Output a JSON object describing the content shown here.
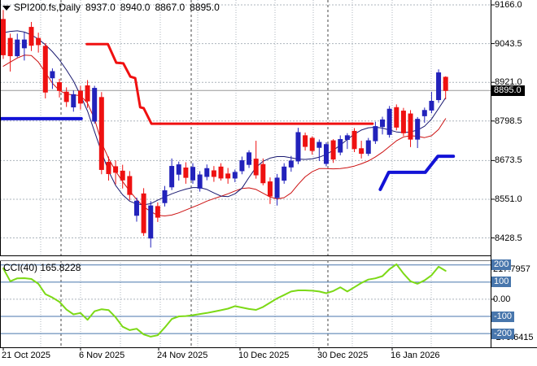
{
  "header": {
    "symbol_marker": "▼",
    "title": "SPI200.fs,Daily",
    "open": "8937.0",
    "high": "8940.0",
    "low": "8867.0",
    "close": "8895.0"
  },
  "price_axis": {
    "ticks": [
      "9166.0",
      "9043.5",
      "8921.0",
      "8798.5",
      "8673.5",
      "8551.0",
      "8428.5"
    ],
    "price_tag": "8895.0"
  },
  "time_axis": {
    "labels": [
      "21 Oct 2025",
      "6 Nov 2025",
      "24 Nov 2025",
      "10 Dec 2025",
      "30 Dec 2025",
      "16 Jan 2026"
    ]
  },
  "indicator_panel": {
    "label_name": "CCI(40)",
    "label_value": "165.8228",
    "axis_max": "217.7957",
    "axis_min": "-270.6415",
    "zero_label": "0.00",
    "level_badges": [
      "200",
      "100",
      "-100",
      "-200"
    ]
  },
  "colors": {
    "up": "#2222BB",
    "down": "#EE1111",
    "ma_fast": "#191970",
    "ma_slow": "#CC1111",
    "trend_red": "#F01010",
    "trend_blue": "#1313D6",
    "cci_line": "#7CD916",
    "level_blue": "#4876AC",
    "grid": "#ACB4BC",
    "separator": "#444444",
    "price_line": "#999999",
    "axis_line": "#000000",
    "tag_bg": "#000000",
    "tag_fg": "#FFFFFF"
  },
  "chart_data": {
    "type": "candlestick",
    "symbol": "SPI200.fs",
    "timeframe": "Daily",
    "last_bar": {
      "open": 8937.0,
      "high": 8940.0,
      "low": 8867.0,
      "close": 8895.0
    },
    "current_price": 8895.0,
    "price_ticks": [
      9166.0,
      9043.5,
      8921.0,
      8798.5,
      8673.5,
      8551.0,
      8428.5
    ],
    "ylim": [
      8398,
      9170
    ],
    "x_date_labels": [
      "21 Oct 2025",
      "6 Nov 2025",
      "24 Nov 2025",
      "10 Dec 2025",
      "30 Dec 2025",
      "16 Jan 2026"
    ],
    "candles": [
      [
        9120,
        9150,
        8995,
        9008
      ],
      [
        9060,
        9075,
        8955,
        9005
      ],
      [
        9005,
        9075,
        9000,
        9055
      ],
      [
        9030,
        9080,
        8990,
        9055
      ],
      [
        9095,
        9112,
        9020,
        9038
      ],
      [
        9060,
        9078,
        9015,
        9040
      ],
      [
        9035,
        9045,
        8870,
        8890
      ],
      [
        8935,
        8965,
        8900,
        8955
      ],
      [
        8920,
        8932,
        8873,
        8895
      ],
      [
        8890,
        8905,
        8843,
        8860
      ],
      [
        8843,
        8895,
        8828,
        8882
      ],
      [
        8893,
        8910,
        8835,
        8855
      ],
      [
        8910,
        8928,
        8840,
        8862
      ],
      [
        8798,
        8910,
        8790,
        8902
      ],
      [
        8873,
        8890,
        8630,
        8645
      ],
      [
        8668,
        8686,
        8610,
        8632
      ],
      [
        8654,
        8674,
        8598,
        8636
      ],
      [
        8640,
        8660,
        8585,
        8612
      ],
      [
        8623,
        8640,
        8548,
        8566
      ],
      [
        8500,
        8556,
        8480,
        8545
      ],
      [
        8568,
        8586,
        8435,
        8445
      ],
      [
        8428,
        8545,
        8398,
        8530
      ],
      [
        8528,
        8541,
        8479,
        8494
      ],
      [
        8540,
        8593,
        8528,
        8578
      ],
      [
        8590,
        8680,
        8580,
        8655
      ],
      [
        8630,
        8670,
        8610,
        8660
      ],
      [
        8650,
        8668,
        8600,
        8620
      ],
      [
        8612,
        8665,
        8600,
        8652
      ],
      [
        8586,
        8640,
        8575,
        8628
      ],
      [
        8623,
        8661,
        8611,
        8648
      ],
      [
        8641,
        8656,
        8606,
        8623
      ],
      [
        8653,
        8665,
        8610,
        8618
      ],
      [
        8631,
        8650,
        8600,
        8618
      ],
      [
        8618,
        8645,
        8605,
        8636
      ],
      [
        8641,
        8686,
        8630,
        8673
      ],
      [
        8661,
        8706,
        8650,
        8698
      ],
      [
        8678,
        8736,
        8616,
        8628
      ],
      [
        8661,
        8680,
        8595,
        8603
      ],
      [
        8606,
        8620,
        8536,
        8561
      ],
      [
        8556,
        8631,
        8531,
        8618
      ],
      [
        8611,
        8665,
        8600,
        8653
      ],
      [
        8653,
        8688,
        8638,
        8672
      ],
      [
        8672,
        8777,
        8662,
        8762
      ],
      [
        8752,
        8762,
        8705,
        8718
      ],
      [
        8744,
        8750,
        8692,
        8705
      ],
      [
        8715,
        8740,
        8672,
        8731
      ],
      [
        8664,
        8731,
        8655,
        8724
      ],
      [
        8736,
        8741,
        8666,
        8678
      ],
      [
        8700,
        8753,
        8690,
        8740
      ],
      [
        8740,
        8760,
        8710,
        8752
      ],
      [
        8766,
        8776,
        8700,
        8711
      ],
      [
        8711,
        8736,
        8680,
        8696
      ],
      [
        8696,
        8745,
        8688,
        8736
      ],
      [
        8736,
        8796,
        8726,
        8781
      ],
      [
        8781,
        8812,
        8756,
        8802
      ],
      [
        8756,
        8846,
        8746,
        8836
      ],
      [
        8841,
        8851,
        8769,
        8779
      ],
      [
        8830,
        8840,
        8751,
        8761
      ],
      [
        8821,
        8833,
        8716,
        8741
      ],
      [
        8741,
        8811,
        8713,
        8804
      ],
      [
        8815,
        8841,
        8793,
        8832
      ],
      [
        8833,
        8891,
        8823,
        8861
      ],
      [
        8866,
        8962,
        8856,
        8951
      ],
      [
        8937,
        8940,
        8867,
        8895
      ]
    ],
    "ma_fast": [
      9078,
      9082,
      9084,
      9080,
      9071,
      9058,
      9040,
      9018,
      8992,
      8960,
      8925,
      8880,
      8830,
      8765,
      8700,
      8640,
      8595,
      8565,
      8545,
      8536,
      8533,
      8537,
      8548,
      8558,
      8568,
      8576,
      8583,
      8588,
      8588,
      8582,
      8571,
      8561,
      8559,
      8568,
      8586,
      8620,
      8652,
      8671,
      8681,
      8686,
      8686,
      8682,
      8678,
      8677,
      8679,
      8684,
      8693,
      8706,
      8722,
      8740,
      8757,
      8770,
      8777,
      8779,
      8776,
      8770,
      8764,
      8762,
      8764,
      8770,
      8782,
      8805,
      8838,
      8872
    ],
    "ma_slow": [
      8972,
      8985,
      8998,
      9007,
      9006,
      8985,
      8952,
      8918,
      8895,
      8884,
      8881,
      8879,
      8855,
      8805,
      8730,
      8680,
      8640,
      8607,
      8577,
      8550,
      8527,
      8512,
      8500,
      8498,
      8501,
      8508,
      8517,
      8526,
      8535,
      8545,
      8553,
      8560,
      8568,
      8577,
      8585,
      8587,
      8582,
      8570,
      8558,
      8552,
      8556,
      8571,
      8598,
      8622,
      8638,
      8648,
      8648,
      8647,
      8648,
      8651,
      8656,
      8663,
      8672,
      8685,
      8700,
      8718,
      8736,
      8748,
      8752,
      8750,
      8746,
      8752,
      8772,
      8806
    ],
    "trend_upper_red": [
      [
        11.9,
        9042
      ],
      [
        14.9,
        9042
      ],
      [
        16.1,
        8983
      ],
      [
        17.1,
        8981
      ],
      [
        18.1,
        8939
      ],
      [
        18.8,
        8934
      ],
      [
        19.5,
        8842
      ],
      [
        20.0,
        8839
      ],
      [
        21.1,
        8790
      ],
      [
        52.6,
        8790
      ]
    ],
    "support_left_blue": [
      [
        -0.5,
        8806
      ],
      [
        11.1,
        8806
      ]
    ],
    "support_right_blue": [
      [
        53.7,
        8582
      ],
      [
        54.9,
        8636
      ],
      [
        60.1,
        8636
      ],
      [
        61.9,
        8687
      ],
      [
        64.1,
        8687
      ]
    ],
    "cci": {
      "period": 40,
      "last": 165.8228,
      "max": 217.7957,
      "min": -270.6415,
      "levels_solid": [
        200,
        100,
        -100,
        -200
      ],
      "levels_dashed": [
        0
      ],
      "values": [
        180,
        105,
        122,
        123,
        118,
        90,
        30,
        10,
        -15,
        -60,
        -88,
        -80,
        -120,
        -70,
        -58,
        -63,
        -105,
        -160,
        -180,
        -172,
        -205,
        -218,
        -210,
        -165,
        -115,
        -100,
        -98,
        -93,
        -86,
        -80,
        -72,
        -64,
        -55,
        -40,
        -48,
        -57,
        -62,
        -45,
        -20,
        5,
        25,
        45,
        52,
        52,
        50,
        45,
        35,
        48,
        70,
        45,
        70,
        95,
        115,
        122,
        135,
        175,
        204,
        150,
        105,
        90,
        110,
        140,
        190,
        165.8228
      ]
    },
    "layout": {
      "plot_right": 603,
      "price_y0": 6,
      "price_p0": 9166,
      "price_scale": 0.38853,
      "bar_x0": 4,
      "bar_dx": 8.63,
      "main_bottom": 314,
      "cci_top": 320,
      "cci_bottom": 427,
      "cci_y0": 322,
      "cci_scale": 0.21088,
      "grid_weekly_x": [
        50,
        99,
        148,
        197,
        243,
        290,
        338,
        385,
        433,
        482,
        530
      ],
      "grid_month_x": [
        75,
        235,
        403
      ],
      "date_label_x": [
        2,
        97,
        193,
        293,
        390,
        480
      ]
    }
  }
}
